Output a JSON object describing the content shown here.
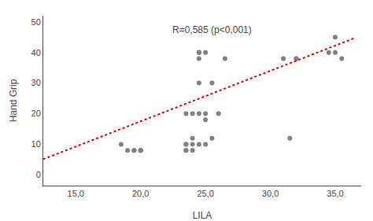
{
  "chart_data": {
    "type": "scatter",
    "xlabel": "LILA",
    "ylabel": "Hand Grip",
    "annotation": "R=0,585 (p<0,001)",
    "xlim": [
      12.5,
      37.0
    ],
    "ylim": [
      -3.5,
      52
    ],
    "xticks": [
      {
        "value": 15.0,
        "label": "15,0"
      },
      {
        "value": 20.0,
        "label": "20,0"
      },
      {
        "value": 25.0,
        "label": "25,0"
      },
      {
        "value": 30.0,
        "label": "30,0"
      },
      {
        "value": 35.0,
        "label": "35,0"
      }
    ],
    "yticks": [
      0,
      10,
      20,
      30,
      40,
      50
    ],
    "grid": false,
    "series": [
      {
        "type": "scatter",
        "color": "#808080",
        "marker": "circle",
        "x": [
          18.5,
          19.0,
          19.5,
          19.5,
          20.0,
          20.0,
          20.0,
          23.5,
          23.5,
          23.5,
          23.5,
          23.5,
          24.0,
          24.0,
          24.0,
          24.0,
          24.5,
          24.5,
          24.5,
          24.5,
          24.5,
          24.5,
          24.5,
          25.0,
          25.0,
          25.0,
          25.0,
          25.5,
          25.5,
          26.0,
          26.5,
          31.0,
          31.5,
          32.0,
          32.0,
          34.5,
          35.0,
          35.0,
          35.5
        ],
        "values": [
          10.0,
          8.0,
          8.0,
          8.0,
          8.0,
          8.0,
          8.0,
          20.0,
          10.0,
          10.0,
          8.0,
          8.0,
          20.0,
          12.0,
          10.0,
          8.0,
          40.0,
          40.0,
          40.0,
          38.0,
          30.0,
          20.0,
          10.0,
          40.0,
          20.0,
          18.0,
          10.0,
          30.0,
          12.0,
          20.0,
          38.0,
          38.0,
          12.0,
          38.0,
          38.0,
          40.0,
          45.0,
          40.0,
          38.0
        ]
      },
      {
        "type": "line",
        "color": "#cc0000",
        "line_style": "dotted",
        "x": [
          12.5,
          36.5
        ],
        "values": [
          5.125,
          44.725
        ]
      }
    ]
  }
}
